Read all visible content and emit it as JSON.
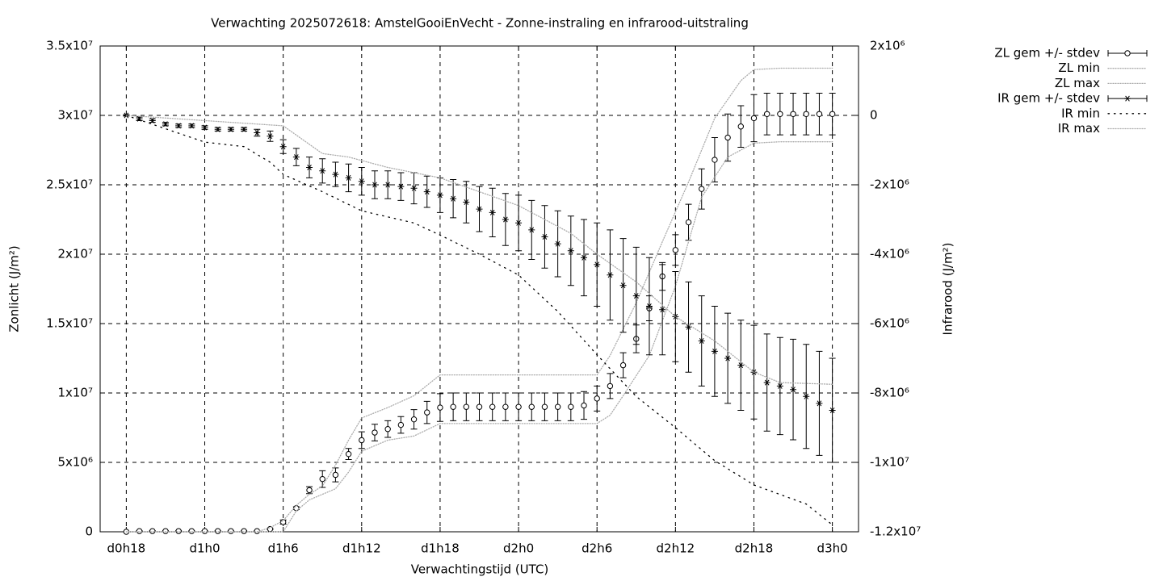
{
  "chart_data": {
    "type": "line",
    "title": "Verwachting 2025072618: AmstelGooiEnVecht - Zonne-instraling en infrarood-uitstraling",
    "xlabel": "Verwachtingstijd (UTC)",
    "ylabel": "Zonlicht (J/m²)",
    "y2label": "Infrarood (J/m²)",
    "grid": true,
    "legend": "outside-right-top",
    "xlim": [
      16,
      74
    ],
    "xticks": [
      {
        "value": 18,
        "label": "d0h18"
      },
      {
        "value": 24,
        "label": "d1h0"
      },
      {
        "value": 30,
        "label": "d1h6"
      },
      {
        "value": 36,
        "label": "d1h12"
      },
      {
        "value": 42,
        "label": "d1h18"
      },
      {
        "value": 48,
        "label": "d2h0"
      },
      {
        "value": 54,
        "label": "d2h6"
      },
      {
        "value": 60,
        "label": "d2h12"
      },
      {
        "value": 66,
        "label": "d2h18"
      },
      {
        "value": 72,
        "label": "d3h0"
      }
    ],
    "ylim": [
      0,
      35000000
    ],
    "yticks": [
      0,
      {
        "value": 5000000,
        "label": "5x10⁶"
      },
      {
        "value": 10000000,
        "label": "1x10⁷"
      },
      {
        "value": 15000000,
        "label": "1.5x10⁷"
      },
      {
        "value": 20000000,
        "label": "2x10⁷"
      },
      {
        "value": 25000000,
        "label": "2.5x10⁷"
      },
      {
        "value": 30000000,
        "label": "3x10⁷"
      },
      {
        "value": 35000000,
        "label": "3.5x10⁷"
      }
    ],
    "y2lim": [
      -12000000,
      2000000
    ],
    "y2ticks": [
      {
        "value": -12000000,
        "label": "-1.2x10⁷"
      },
      {
        "value": -10000000,
        "label": "-1x10⁷"
      },
      {
        "value": -8000000,
        "label": "-8x10⁶"
      },
      {
        "value": -6000000,
        "label": "-6x10⁶"
      },
      {
        "value": -4000000,
        "label": "-4x10⁶"
      },
      {
        "value": -2000000,
        "label": "-2x10⁶"
      },
      0,
      {
        "value": 2000000,
        "label": "2x10⁶"
      }
    ],
    "x": [
      18,
      19,
      20,
      21,
      22,
      23,
      24,
      25,
      26,
      27,
      28,
      29,
      30,
      31,
      32,
      33,
      34,
      35,
      36,
      37,
      38,
      39,
      40,
      41,
      42,
      43,
      44,
      45,
      46,
      47,
      48,
      49,
      50,
      51,
      52,
      53,
      54,
      55,
      56,
      57,
      58,
      59,
      60,
      61,
      62,
      63,
      64,
      65,
      66,
      67,
      68,
      69,
      70,
      71,
      72
    ],
    "series": [
      {
        "name": "ZL gem +/- stdev",
        "color": "#000000",
        "marker": "circle",
        "values": [
          0,
          50000,
          50000,
          50000,
          50000,
          50000,
          50000,
          50000,
          50000,
          50000,
          50000,
          200000,
          700000,
          1700000,
          3000000,
          3800000,
          4100000,
          5600000,
          6600000,
          7150000,
          7400000,
          7700000,
          8100000,
          8600000,
          8950000,
          9000000,
          9000000,
          9000000,
          9000000,
          9000000,
          9000000,
          9000000,
          9000000,
          9000000,
          9000000,
          9100000,
          9600000,
          10500000,
          12000000,
          13900000,
          16100000,
          18400000,
          20300000,
          22300000,
          24700000,
          26800000,
          28400000,
          29200000,
          29800000,
          30100000,
          30100000,
          30100000,
          30100000,
          30100000,
          30100000
        ],
        "stdev": [
          0,
          30000,
          30000,
          30000,
          30000,
          30000,
          30000,
          30000,
          30000,
          30000,
          30000,
          50000,
          150000,
          100000,
          250000,
          600000,
          500000,
          400000,
          600000,
          600000,
          600000,
          600000,
          700000,
          800000,
          1000000,
          1000000,
          1000000,
          1000000,
          1000000,
          1000000,
          1000000,
          1000000,
          1000000,
          1000000,
          1000000,
          1000000,
          900000,
          900000,
          900000,
          1000000,
          900000,
          1000000,
          1100000,
          1300000,
          1450000,
          1600000,
          1700000,
          1500000,
          1700000,
          1500000,
          1500000,
          1500000,
          1500000,
          1500000,
          1500000
        ]
      },
      {
        "name": "ZL min",
        "color": "#aaaaaa",
        "dash": "1,2",
        "x": [
          18,
          30,
          31,
          32,
          34,
          35,
          36,
          38,
          40,
          42,
          54,
          55,
          56,
          58,
          60,
          61,
          62,
          64,
          66,
          68,
          72
        ],
        "values": [
          0,
          0,
          1500000,
          2300000,
          3100000,
          4300000,
          5800000,
          6600000,
          6900000,
          7800000,
          7800000,
          8400000,
          9800000,
          12700000,
          17700000,
          20900000,
          24100000,
          27000000,
          28000000,
          28100000,
          28100000
        ]
      },
      {
        "name": "ZL max",
        "color": "#aaaaaa",
        "dash": "1,2",
        "x": [
          18,
          28,
          29,
          30,
          31,
          32,
          33,
          34,
          35,
          36,
          38,
          40,
          42,
          54,
          55,
          57,
          59,
          61,
          63,
          65,
          66,
          68,
          72
        ],
        "values": [
          0,
          0,
          300000,
          800000,
          1900000,
          2700000,
          3300000,
          4800000,
          6600000,
          8200000,
          8950000,
          9800000,
          11300000,
          11300000,
          12700000,
          16500000,
          20900000,
          25200000,
          29800000,
          32500000,
          33300000,
          33400000,
          33400000
        ]
      },
      {
        "name": "IR gem +/- stdev",
        "color": "#000000",
        "marker": "star",
        "axis": "y2",
        "values": [
          0,
          -100000,
          -150000,
          -250000,
          -300000,
          -300000,
          -350000,
          -400000,
          -400000,
          -400000,
          -500000,
          -600000,
          -900000,
          -1200000,
          -1500000,
          -1600000,
          -1700000,
          -1800000,
          -1900000,
          -2000000,
          -2000000,
          -2050000,
          -2100000,
          -2200000,
          -2300000,
          -2400000,
          -2500000,
          -2700000,
          -2800000,
          -3000000,
          -3100000,
          -3300000,
          -3500000,
          -3700000,
          -3900000,
          -4100000,
          -4300000,
          -4600000,
          -4900000,
          -5200000,
          -5500000,
          -5600000,
          -5800000,
          -6100000,
          -6500000,
          -6800000,
          -7000000,
          -7200000,
          -7400000,
          -7700000,
          -7800000,
          -7900000,
          -8100000,
          -8300000,
          -8500000
        ],
        "stdev": [
          20000,
          50000,
          50000,
          50000,
          50000,
          50000,
          50000,
          50000,
          50000,
          50000,
          100000,
          150000,
          200000,
          250000,
          300000,
          350000,
          350000,
          400000,
          400000,
          400000,
          400000,
          400000,
          450000,
          450000,
          500000,
          550000,
          600000,
          650000,
          700000,
          750000,
          800000,
          850000,
          900000,
          950000,
          1000000,
          1100000,
          1200000,
          1300000,
          1350000,
          1400000,
          1400000,
          1300000,
          1300000,
          1300000,
          1300000,
          1300000,
          1300000,
          1300000,
          1350000,
          1400000,
          1400000,
          1450000,
          1500000,
          1500000,
          1500000
        ]
      },
      {
        "name": "IR min",
        "color": "#000000",
        "dash": "1.5,6",
        "axis": "y2",
        "x": [
          18,
          24,
          27,
          29,
          30,
          33,
          36,
          40,
          42,
          45,
          48,
          51,
          54,
          57,
          60,
          63,
          66,
          70,
          72
        ],
        "values": [
          0,
          -770000,
          -900000,
          -1350000,
          -1700000,
          -2200000,
          -2750000,
          -3100000,
          -3450000,
          -4000000,
          -4600000,
          -5650000,
          -6900000,
          -8100000,
          -9000000,
          -9950000,
          -10650000,
          -11200000,
          -11800000
        ]
      },
      {
        "name": "IR max",
        "color": "#aaaaaa",
        "dash": "1,2",
        "axis": "y2",
        "x": [
          18,
          30,
          33,
          35,
          38,
          42,
          45,
          48,
          52,
          54,
          57,
          60,
          63,
          66,
          68,
          72
        ],
        "values": [
          0,
          -300000,
          -1100000,
          -1200000,
          -1500000,
          -1800000,
          -2200000,
          -2600000,
          -3400000,
          -4000000,
          -4800000,
          -5800000,
          -6500000,
          -7400000,
          -7700000,
          -7750000
        ]
      }
    ]
  }
}
